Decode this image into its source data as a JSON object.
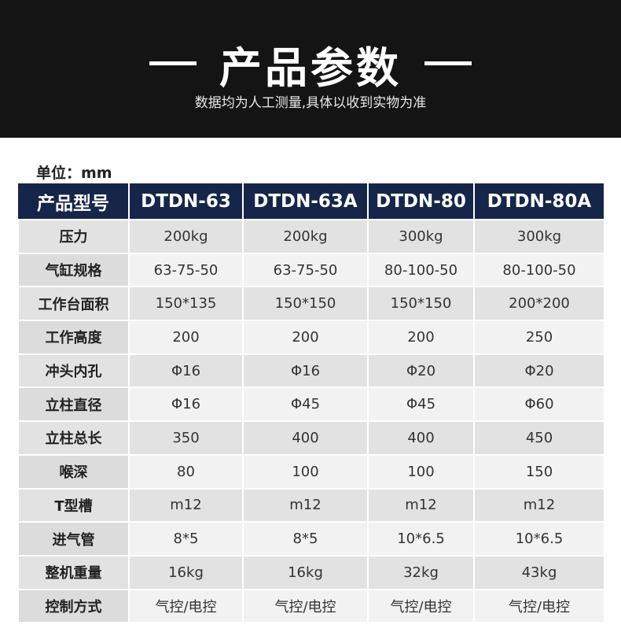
{
  "header": {
    "title": "产品参数",
    "subtitle": "数据均为人工测量,具体以收到实物为准"
  },
  "unit": "单位：mm",
  "table": {
    "columns": [
      "产品型号",
      "DTDN-63",
      "DTDN-63A",
      "DTDN-80",
      "DTDN-80A"
    ],
    "rows": [
      [
        "压力",
        "200kg",
        "200kg",
        "300kg",
        "300kg"
      ],
      [
        "气缸规格",
        "63-75-50",
        "63-75-50",
        "80-100-50",
        "80-100-50"
      ],
      [
        "工作台面积",
        "150*135",
        "150*150",
        "150*150",
        "200*200"
      ],
      [
        "工作高度",
        "200",
        "200",
        "200",
        "250"
      ],
      [
        "冲头内孔",
        "Φ16",
        "Φ16",
        "Φ20",
        "Φ20"
      ],
      [
        "立柱直径",
        "Φ16",
        "Φ45",
        "Φ45",
        "Φ60"
      ],
      [
        "立柱总长",
        "350",
        "400",
        "400",
        "450"
      ],
      [
        "喉深",
        "80",
        "100",
        "100",
        "150"
      ],
      [
        "T型槽",
        "m12",
        "m12",
        "m12",
        "m12"
      ],
      [
        "进气管",
        "8*5",
        "8*5",
        "10*6.5",
        "10*6.5"
      ],
      [
        "整机重量",
        "16kg",
        "16kg",
        "32kg",
        "43kg"
      ],
      [
        "控制方式",
        "气控/电控",
        "气控/电控",
        "气控/电控",
        "气控/电控"
      ]
    ]
  }
}
